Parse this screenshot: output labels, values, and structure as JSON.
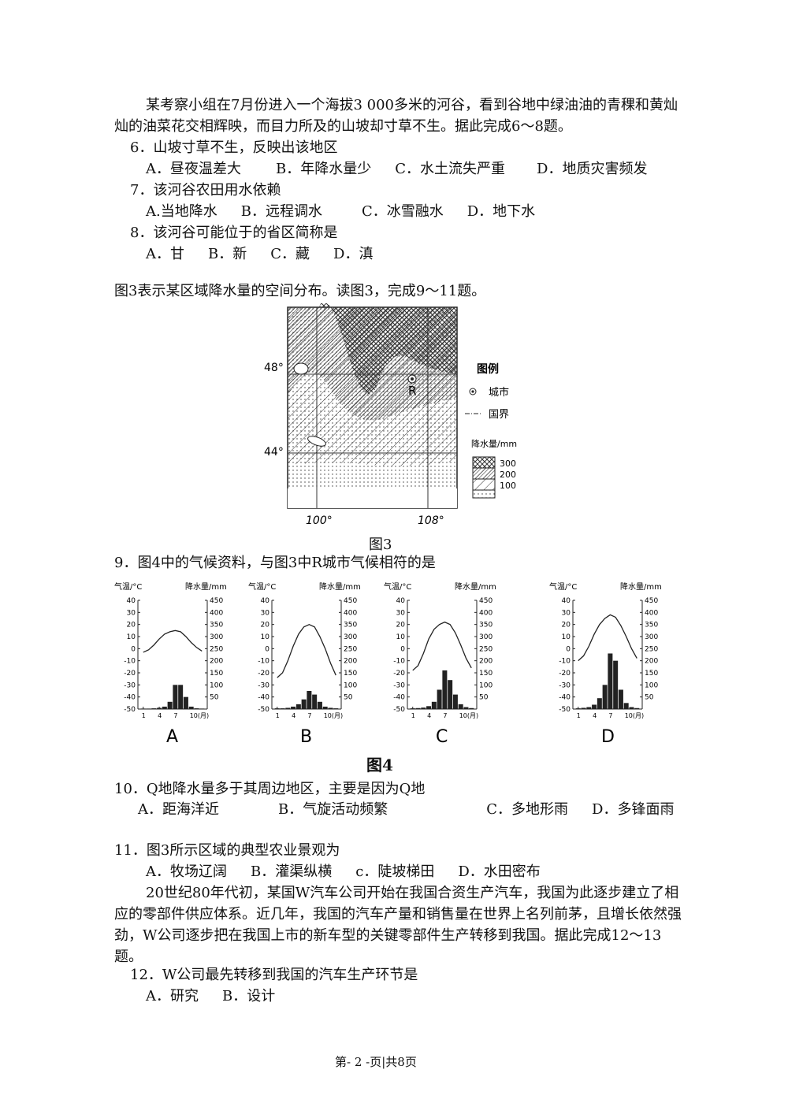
{
  "intro": "某考察小组在7月份进入一个海拔3 000多米的河谷，看到谷地中绿油油的青稞和黄灿灿的油菜花交相辉映，而目力所及的山坡却寸草不生。据此完成6～8题。",
  "q6": {
    "stem": "6．山坡寸草不生，反映出该地区",
    "options": [
      "A．昼夜温差大",
      "B．年降水量少",
      "C．水土流失严重",
      "D．地质灾害频发"
    ]
  },
  "q7": {
    "stem": "7．该河谷农田用水依赖",
    "options": [
      "A.当地降水",
      "B．远程调水",
      "C．冰雪融水",
      "D．地下水"
    ]
  },
  "q8": {
    "stem": "8．该河谷可能位于的省区简称是",
    "options": [
      "A．甘",
      "B．新",
      "C．藏",
      "D．滇"
    ]
  },
  "fig3_intro": "图3表示某区域降水量的空间分布。读图3，完成9～11题。",
  "fig3": {
    "lat_labels": [
      "48°",
      "44°"
    ],
    "lon_labels": [
      "100°",
      "108°"
    ],
    "city": "R",
    "legend_title": "图例",
    "legend_items": [
      "城市",
      "国界"
    ],
    "precip_title": "降水量/mm",
    "levels": [
      "300",
      "200",
      "100"
    ],
    "caption": "图3"
  },
  "q9": {
    "stem": "9．图4中的气候资料，与图3中R城市气候相符的是"
  },
  "fig4": {
    "temp_title": "气温/°C",
    "precip_title": "降水量/mm",
    "ylim": [
      -50,
      40
    ],
    "yticks": [
      40,
      30,
      20,
      10,
      0,
      -10,
      -20,
      -30,
      -40,
      -50
    ],
    "y2lim": [
      0,
      450
    ],
    "y2ticks": [
      450,
      400,
      350,
      300,
      250,
      200,
      150,
      100,
      50
    ],
    "xlim": [
      0,
      13
    ],
    "xticks": [
      1,
      4,
      7,
      {
        "value": 10,
        "label": "10(月)"
      }
    ],
    "charts": [
      {
        "label": "A",
        "temperature": [
          -3,
          -1,
          3,
          8,
          12,
          14,
          15,
          14,
          10,
          5,
          1,
          -2
        ],
        "precipitation": [
          2,
          2,
          3,
          5,
          10,
          30,
          100,
          100,
          50,
          10,
          3,
          2
        ]
      },
      {
        "label": "B",
        "temperature": [
          -24,
          -20,
          -10,
          2,
          12,
          18,
          20,
          18,
          10,
          0,
          -12,
          -22
        ],
        "precipitation": [
          3,
          3,
          5,
          10,
          20,
          40,
          75,
          60,
          30,
          10,
          5,
          3
        ]
      },
      {
        "label": "C",
        "temperature": [
          -18,
          -14,
          -4,
          8,
          16,
          20,
          22,
          20,
          13,
          3,
          -8,
          -16
        ],
        "precipitation": [
          3,
          4,
          6,
          12,
          30,
          80,
          160,
          120,
          60,
          20,
          8,
          4
        ]
      },
      {
        "label": "D",
        "temperature": [
          -10,
          -6,
          2,
          12,
          20,
          25,
          28,
          26,
          19,
          10,
          0,
          -8
        ],
        "precipitation": [
          3,
          5,
          8,
          18,
          45,
          100,
          230,
          200,
          80,
          25,
          8,
          4
        ]
      }
    ],
    "caption": "图4"
  },
  "q10": {
    "stem": "10．Q地降水量多于其周边地区，主要是因为Q地",
    "options": [
      "A．距海洋近",
      "B．气旋活动频繁",
      "C．多地形雨",
      "D．多锋面雨"
    ]
  },
  "q11": {
    "stem": "11．图3所示区域的典型农业景观为",
    "options": [
      "A．牧场辽阔",
      "B．灌渠纵横",
      "c．陡坡梯田",
      "D．水田密布"
    ]
  },
  "para2": "20世纪80年代初，某国W汽车公司开始在我国合资生产汽车，我国为此逐步建立了相应的零部件供应体系。近几年，我国的汽车产量和销售量在世界上名列前茅，且增长依然强劲，W公司逐步把在我国上市的新车型的关键零部件生产转移到我国。据此完成12～13题。",
  "q12": {
    "stem": "12．W公司最先转移到我国的汽车生产环节是",
    "options": [
      "A．研究",
      "B．设计"
    ]
  },
  "footer": "第- 2 -页|共8页"
}
